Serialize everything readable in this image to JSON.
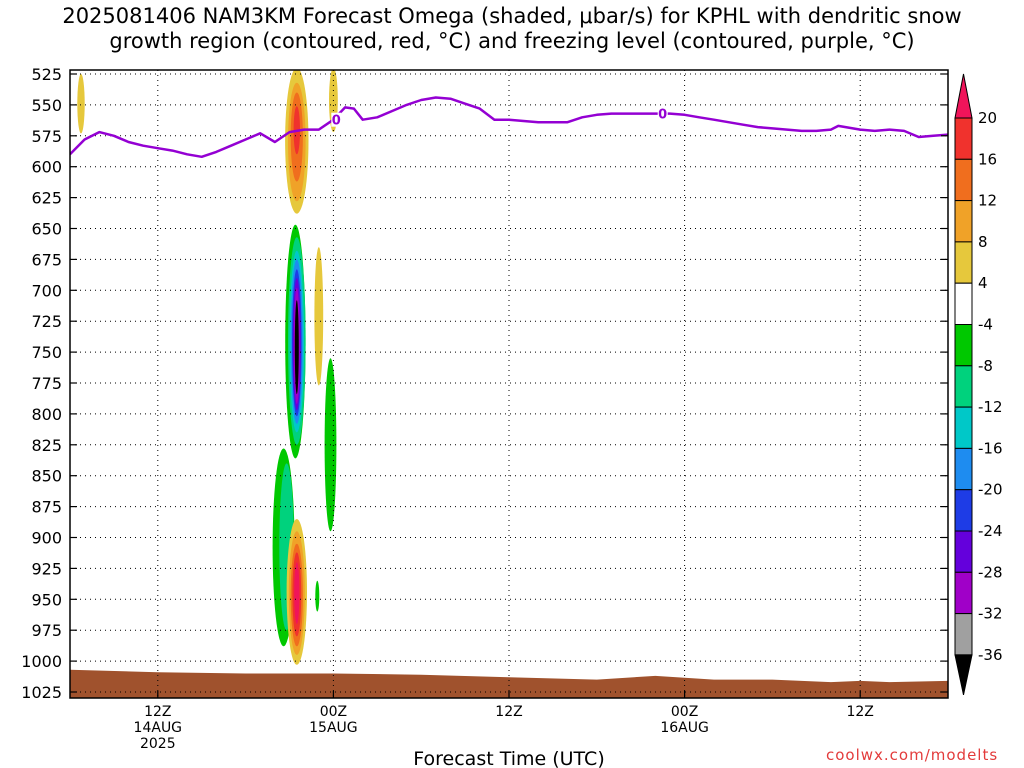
{
  "chart_data": {
    "type": "heatmap",
    "title_line1": "2025081406 NAM3KM Forecast Omega (shaded, μbar/s) for KPHL with dendritic snow",
    "title_line2": "growth region (contoured, red, °C) and freezing level (contoured, purple, °C)",
    "xlabel": "Forecast Time (UTC)",
    "y_ticks": [
      "525",
      "550",
      "575",
      "600",
      "625",
      "650",
      "675",
      "700",
      "725",
      "750",
      "775",
      "800",
      "825",
      "850",
      "875",
      "900",
      "925",
      "950",
      "975",
      "1000",
      "1025"
    ],
    "y_values": [
      525,
      550,
      575,
      600,
      625,
      650,
      675,
      700,
      725,
      750,
      775,
      800,
      825,
      850,
      875,
      900,
      925,
      950,
      975,
      1000,
      1025
    ],
    "ylim": [
      525,
      1025
    ],
    "x_hour_range": [
      6,
      66
    ],
    "x_ticks": [
      {
        "hour": 12,
        "lines": [
          "12Z",
          "14AUG",
          "2025"
        ]
      },
      {
        "hour": 24,
        "lines": [
          "00Z",
          "15AUG"
        ]
      },
      {
        "hour": 36,
        "lines": [
          "12Z"
        ]
      },
      {
        "hour": 48,
        "lines": [
          "00Z",
          "16AUG"
        ]
      },
      {
        "hour": 60,
        "lines": [
          "12Z"
        ]
      }
    ],
    "colorbar": {
      "labels": [
        "20",
        "16",
        "12",
        "8",
        "4",
        "-4",
        "-8",
        "-12",
        "-16",
        "-20",
        "-24",
        "-28",
        "-32",
        "-36"
      ],
      "levels": [
        20,
        16,
        12,
        8,
        4,
        -4,
        -8,
        -12,
        -16,
        -20,
        -24,
        -28,
        -32,
        -36
      ],
      "colors": [
        "#f0145a",
        "#f0322d",
        "#f06e1e",
        "#f0a228",
        "#e6c83c",
        "#ffffff",
        "#00c800",
        "#00d27d",
        "#00c8c8",
        "#1e8cf0",
        "#1e3ce6",
        "#6400dc",
        "#a000c8",
        "#a0a0a0",
        "#000000"
      ]
    },
    "freezing_level": {
      "label": "0",
      "color": "#9400d3",
      "points": [
        [
          6,
          590
        ],
        [
          7,
          578
        ],
        [
          8,
          572
        ],
        [
          9,
          575
        ],
        [
          10,
          580
        ],
        [
          11,
          583
        ],
        [
          12,
          585
        ],
        [
          13,
          587
        ],
        [
          14,
          590
        ],
        [
          15,
          592
        ],
        [
          16,
          588
        ],
        [
          17,
          583
        ],
        [
          18,
          578
        ],
        [
          19,
          573
        ],
        [
          20,
          580
        ],
        [
          21,
          572
        ],
        [
          22,
          570
        ],
        [
          23,
          570
        ],
        [
          24,
          562
        ],
        [
          24.8,
          552
        ],
        [
          25.4,
          553
        ],
        [
          26,
          562
        ],
        [
          27,
          560
        ],
        [
          28,
          555
        ],
        [
          29,
          550
        ],
        [
          30,
          546
        ],
        [
          31,
          544
        ],
        [
          32,
          545
        ],
        [
          33,
          549
        ],
        [
          34,
          553
        ],
        [
          35,
          562
        ],
        [
          36,
          562
        ],
        [
          37,
          563
        ],
        [
          38,
          564
        ],
        [
          39,
          564
        ],
        [
          40,
          564
        ],
        [
          41,
          560
        ],
        [
          42,
          558
        ],
        [
          43,
          557
        ],
        [
          44,
          557
        ],
        [
          45,
          557
        ],
        [
          46,
          557
        ],
        [
          47,
          557
        ],
        [
          48,
          558
        ],
        [
          49,
          560
        ],
        [
          50,
          562
        ],
        [
          51,
          564
        ],
        [
          52,
          566
        ],
        [
          53,
          568
        ],
        [
          54,
          569
        ],
        [
          55,
          570
        ],
        [
          56,
          571
        ],
        [
          57,
          571
        ],
        [
          58,
          570
        ],
        [
          58.5,
          567
        ],
        [
          59,
          568
        ],
        [
          60,
          570
        ],
        [
          61,
          571
        ],
        [
          62,
          570
        ],
        [
          63,
          571
        ],
        [
          64,
          576
        ],
        [
          65,
          575
        ],
        [
          66,
          574
        ]
      ]
    },
    "omega_regions": [
      {
        "level": 4,
        "hour": 6.75,
        "p_top": 525,
        "p_bottom": 573,
        "half_width_hours": 0.25
      },
      {
        "level": 4,
        "hour": 21.5,
        "p_top": 520,
        "p_bottom": 638,
        "half_width_hours": 0.8
      },
      {
        "level": 8,
        "hour": 21.5,
        "p_top": 532,
        "p_bottom": 628,
        "half_width_hours": 0.6
      },
      {
        "level": 12,
        "hour": 21.5,
        "p_top": 540,
        "p_bottom": 612,
        "half_width_hours": 0.42
      },
      {
        "level": 16,
        "hour": 21.5,
        "p_top": 551,
        "p_bottom": 590,
        "half_width_hours": 0.22
      },
      {
        "level": 4,
        "hour": 24.0,
        "p_top": 520,
        "p_bottom": 572,
        "half_width_hours": 0.3
      },
      {
        "level": 4,
        "hour": 23.0,
        "p_top": 665,
        "p_bottom": 777,
        "half_width_hours": 0.3
      },
      {
        "level": -4,
        "hour": 21.4,
        "p_top": 647,
        "p_bottom": 836,
        "half_width_hours": 0.7
      },
      {
        "level": -8,
        "hour": 21.5,
        "p_top": 657,
        "p_bottom": 825,
        "half_width_hours": 0.6
      },
      {
        "level": -12,
        "hour": 21.5,
        "p_top": 668,
        "p_bottom": 815,
        "half_width_hours": 0.5
      },
      {
        "level": -16,
        "hour": 21.5,
        "p_top": 675,
        "p_bottom": 808,
        "half_width_hours": 0.42
      },
      {
        "level": -20,
        "hour": 21.5,
        "p_top": 683,
        "p_bottom": 802,
        "half_width_hours": 0.33
      },
      {
        "level": -24,
        "hour": 21.5,
        "p_top": 690,
        "p_bottom": 797,
        "half_width_hours": 0.27
      },
      {
        "level": -28,
        "hour": 21.5,
        "p_top": 698,
        "p_bottom": 792,
        "half_width_hours": 0.2
      },
      {
        "level": -36,
        "hour": 21.5,
        "p_top": 708,
        "p_bottom": 784,
        "half_width_hours": 0.12
      },
      {
        "level": -4,
        "hour": 20.6,
        "p_top": 828,
        "p_bottom": 988,
        "half_width_hours": 0.75
      },
      {
        "level": -8,
        "hour": 20.8,
        "p_top": 840,
        "p_bottom": 975,
        "half_width_hours": 0.5
      },
      {
        "level": -4,
        "hour": 23.8,
        "p_top": 755,
        "p_bottom": 895,
        "half_width_hours": 0.4
      },
      {
        "level": -4,
        "hour": 22.9,
        "p_top": 935,
        "p_bottom": 960,
        "half_width_hours": 0.1
      },
      {
        "level": 4,
        "hour": 21.5,
        "p_top": 885,
        "p_bottom": 1003,
        "half_width_hours": 0.7
      },
      {
        "level": 8,
        "hour": 21.5,
        "p_top": 895,
        "p_bottom": 995,
        "half_width_hours": 0.55
      },
      {
        "level": 12,
        "hour": 21.5,
        "p_top": 905,
        "p_bottom": 988,
        "half_width_hours": 0.42
      },
      {
        "level": 16,
        "hour": 21.5,
        "p_top": 912,
        "p_bottom": 980,
        "half_width_hours": 0.3
      },
      {
        "level": 20,
        "hour": 21.5,
        "p_top": 920,
        "p_bottom": 970,
        "half_width_hours": 0.18
      }
    ],
    "ground": {
      "color": "#a0522d",
      "points": [
        [
          6,
          1007
        ],
        [
          12,
          1009
        ],
        [
          18,
          1010
        ],
        [
          24,
          1010
        ],
        [
          30,
          1011
        ],
        [
          36,
          1013
        ],
        [
          42,
          1015
        ],
        [
          46,
          1012
        ],
        [
          50,
          1015
        ],
        [
          54,
          1015
        ],
        [
          58,
          1017
        ],
        [
          60,
          1016
        ],
        [
          62,
          1017
        ],
        [
          66,
          1016
        ]
      ]
    },
    "grid": true
  },
  "watermark": "coolwx.com/modelts"
}
